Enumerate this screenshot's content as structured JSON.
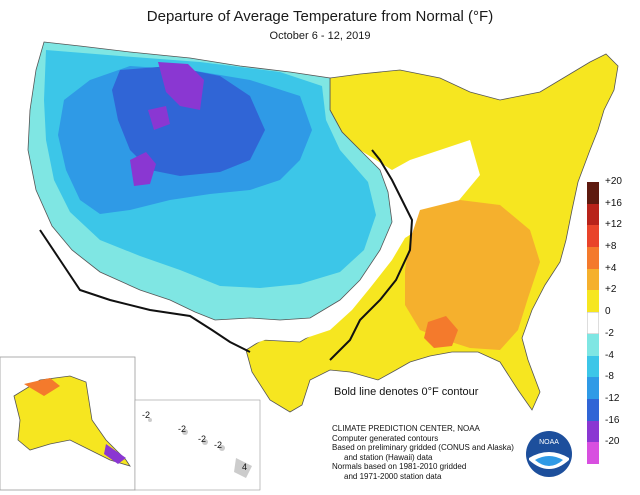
{
  "map": {
    "title": "Departure of Average Temperature from Normal (°F)",
    "subtitle": "October 6 - 12, 2019",
    "contour_note": "Bold line denotes 0°F contour",
    "legend": [
      {
        "label": "+20",
        "color": "#5e1a0f"
      },
      {
        "label": "+16",
        "color": "#b8231a"
      },
      {
        "label": "+12",
        "color": "#e9442a"
      },
      {
        "label": "+8",
        "color": "#f47a2c"
      },
      {
        "label": "+4",
        "color": "#f5b02d"
      },
      {
        "label": "+2",
        "color": "#f6e620"
      },
      {
        "label": "0",
        "color": "#ffffff"
      },
      {
        "label": "-2",
        "color": "#7fe6e3"
      },
      {
        "label": "-4",
        "color": "#3cc6e8"
      },
      {
        "label": "-8",
        "color": "#2f9ae6"
      },
      {
        "label": "-12",
        "color": "#3065d6"
      },
      {
        "label": "-16",
        "color": "#8a37d2"
      },
      {
        "label": "-20",
        "color": "#d84fe0"
      }
    ],
    "credits": [
      "CLIMATE PREDICTION CENTER, NOAA",
      "Computer generated contours",
      "Based on preliminary gridded (CONUS and Alaska)",
      "and station (Hawaii) data",
      "Normals based on 1981-2010 gridded",
      "and 1971-2000 station data"
    ],
    "hawaii_labels": [
      "-2",
      "-2",
      "-2",
      "-2",
      "4"
    ],
    "logo_text": "NOAA"
  }
}
